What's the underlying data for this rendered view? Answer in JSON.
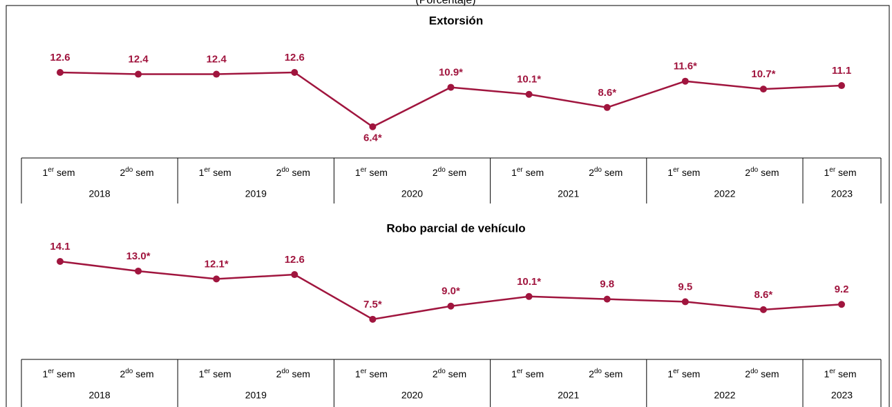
{
  "subtitle": "(Porcentaje)",
  "chart_data": [
    {
      "type": "line",
      "title": "Extorsión",
      "color": "#a0153e",
      "categories": [
        "1er sem",
        "2do sem",
        "1er sem",
        "2do sem",
        "1er sem",
        "2do sem",
        "1er sem",
        "2do sem",
        "1er sem",
        "2do sem",
        "1er sem"
      ],
      "groups": [
        "2018",
        "2019",
        "2020",
        "2021",
        "2022",
        "2023"
      ],
      "values": [
        12.6,
        12.4,
        12.4,
        12.6,
        6.4,
        10.9,
        10.1,
        8.6,
        11.6,
        10.7,
        11.1
      ],
      "value_labels": [
        "12.6",
        "12.4",
        "12.4",
        "12.6",
        "6.4*",
        "10.9*",
        "10.1*",
        "8.6*",
        "11.6*",
        "10.7*",
        "11.1"
      ]
    },
    {
      "type": "line",
      "title": "Robo parcial de vehículo",
      "color": "#a0153e",
      "categories": [
        "1er sem",
        "2do sem",
        "1er sem",
        "2do sem",
        "1er sem",
        "2do sem",
        "1er sem",
        "2do sem",
        "1er sem",
        "2do sem",
        "1er sem"
      ],
      "groups": [
        "2018",
        "2019",
        "2020",
        "2021",
        "2022",
        "2023"
      ],
      "values": [
        14.1,
        13.0,
        12.1,
        12.6,
        7.5,
        9.0,
        10.1,
        9.8,
        9.5,
        8.6,
        9.2
      ],
      "value_labels": [
        "14.1",
        "13.0*",
        "12.1*",
        "12.6",
        "7.5*",
        "9.0*",
        "10.1*",
        "9.8",
        "9.5",
        "8.6*",
        "9.2"
      ]
    }
  ]
}
